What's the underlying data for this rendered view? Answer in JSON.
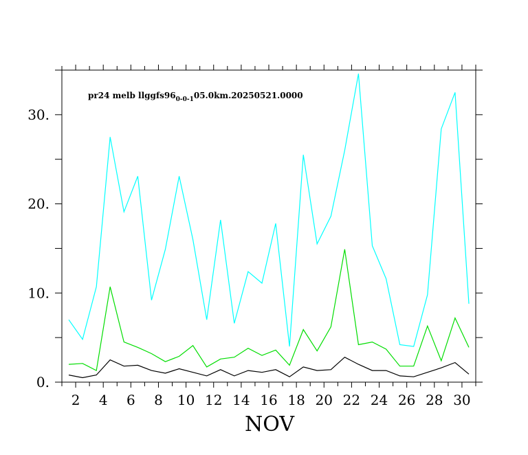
{
  "chart_data": {
    "type": "line",
    "title_prefix": "pr24  melb  llggfs96",
    "title_subscript": "0-0-1",
    "title_suffix": "05.0km.20250521.0000",
    "xlabel": "NOV",
    "ylabel": "",
    "xlim": [
      1,
      31
    ],
    "ylim": [
      0,
      35
    ],
    "x_ticks": [
      2,
      4,
      6,
      8,
      10,
      12,
      14,
      16,
      18,
      20,
      22,
      24,
      26,
      28,
      30
    ],
    "y_ticks": [
      0,
      10,
      20,
      30
    ],
    "y_tick_labels": [
      "0.",
      "10.",
      "20.",
      "30."
    ],
    "grid": false,
    "x": [
      1.5,
      2.5,
      3.5,
      4.5,
      5.5,
      6.5,
      7.5,
      8.5,
      9.5,
      10.5,
      11.5,
      12.5,
      13.5,
      14.5,
      15.5,
      16.5,
      17.5,
      18.5,
      19.5,
      20.5,
      21.5,
      22.5,
      23.5,
      24.5,
      25.5,
      26.5,
      27.5,
      28.5,
      29.5,
      30.5
    ],
    "series": [
      {
        "color": "#00ffff",
        "values": [
          7.0,
          4.8,
          10.7,
          27.5,
          19.1,
          23.1,
          9.2,
          14.9,
          23.1,
          16.0,
          7.0,
          18.2,
          6.6,
          12.4,
          11.1,
          17.8,
          4.0,
          25.5,
          15.5,
          18.6,
          26.0,
          34.6,
          15.3,
          11.6,
          4.2,
          4.0,
          9.8,
          28.4,
          32.5,
          8.8
        ]
      },
      {
        "color": "#00dd00",
        "values": [
          2.0,
          2.1,
          1.3,
          10.7,
          4.5,
          3.9,
          3.2,
          2.3,
          2.9,
          4.1,
          1.7,
          2.6,
          2.8,
          3.8,
          3.0,
          3.6,
          1.9,
          5.9,
          3.5,
          6.2,
          14.9,
          4.2,
          4.5,
          3.7,
          1.8,
          1.8,
          6.3,
          2.4,
          7.2,
          3.9
        ]
      },
      {
        "color": "#000000",
        "values": [
          0.8,
          0.5,
          0.8,
          2.5,
          1.8,
          1.9,
          1.3,
          1.0,
          1.5,
          1.1,
          0.7,
          1.4,
          0.7,
          1.3,
          1.1,
          1.4,
          0.6,
          1.7,
          1.3,
          1.4,
          2.8,
          2.0,
          1.3,
          1.3,
          0.7,
          0.6,
          1.1,
          1.6,
          2.2,
          0.9
        ]
      }
    ]
  }
}
